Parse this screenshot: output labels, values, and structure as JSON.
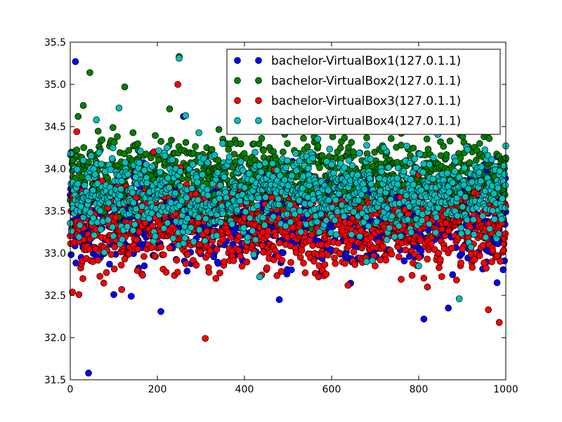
{
  "chart_data": {
    "type": "scatter",
    "title": "",
    "xlabel": "",
    "ylabel": "",
    "xlim": [
      0,
      1000
    ],
    "ylim": [
      31.5,
      35.5
    ],
    "x_ticks": [
      "0",
      "200",
      "400",
      "600",
      "800",
      "1000"
    ],
    "y_ticks": [
      "31.5",
      "32.0",
      "32.5",
      "33.0",
      "33.5",
      "34.0",
      "34.5",
      "35.0",
      "35.5"
    ],
    "grid": false,
    "legend_position": "top-right",
    "points_per_series": 1000,
    "series": [
      {
        "name": "bachelor-VirtualBox1(127.0.1.1)",
        "color": "#0000ff",
        "typical_range": [
          33.0,
          33.8
        ],
        "sample_points": [
          [
            12,
            35.27
          ],
          [
            42,
            31.58
          ],
          [
            100,
            32.51
          ],
          [
            140,
            32.49
          ],
          [
            170,
            32.85
          ],
          [
            208,
            32.31
          ],
          [
            260,
            34.62
          ],
          [
            480,
            32.45
          ],
          [
            812,
            32.22
          ],
          [
            868,
            32.35
          ],
          [
            25,
            32.95
          ],
          [
            330,
            33.45
          ],
          [
            690,
            33.62
          ],
          [
            950,
            34.05
          ],
          [
            980,
            32.65
          ]
        ]
      },
      {
        "name": "bachelor-VirtualBox2(127.0.1.1)",
        "color": "#008000",
        "typical_range": [
          33.5,
          34.3
        ],
        "sample_points": [
          [
            45,
            35.14
          ],
          [
            125,
            34.97
          ],
          [
            228,
            34.71
          ],
          [
            250,
            35.33
          ],
          [
            18,
            34.62
          ],
          [
            30,
            34.75
          ],
          [
            380,
            34.45
          ],
          [
            470,
            34.55
          ],
          [
            560,
            34.38
          ],
          [
            760,
            34.42
          ],
          [
            850,
            34.32
          ],
          [
            940,
            34.3
          ],
          [
            990,
            33.93
          ],
          [
            5,
            34.1
          ],
          [
            650,
            34.2
          ]
        ]
      },
      {
        "name": "bachelor-VirtualBox3(127.0.1.1)",
        "color": "#ff0000",
        "typical_range": [
          32.9,
          33.7
        ],
        "sample_points": [
          [
            5,
            32.54
          ],
          [
            20,
            32.51
          ],
          [
            118,
            32.57
          ],
          [
            247,
            35.0
          ],
          [
            310,
            31.99
          ],
          [
            192,
            34.2
          ],
          [
            15,
            34.44
          ],
          [
            570,
            32.72
          ],
          [
            700,
            32.85
          ],
          [
            820,
            32.6
          ],
          [
            960,
            32.33
          ],
          [
            985,
            32.18
          ],
          [
            88,
            33.35
          ],
          [
            410,
            33.65
          ],
          [
            900,
            33.05
          ]
        ]
      },
      {
        "name": "bachelor-VirtualBox4(127.0.1.1)",
        "color": "#00bfbf",
        "typical_range": [
          33.3,
          34.1
        ],
        "sample_points": [
          [
            250,
            35.31
          ],
          [
            265,
            34.63
          ],
          [
            112,
            34.72
          ],
          [
            60,
            34.58
          ],
          [
            893,
            32.46
          ],
          [
            435,
            32.72
          ],
          [
            800,
            32.85
          ],
          [
            150,
            33.9
          ],
          [
            350,
            34.3
          ],
          [
            600,
            34.05
          ],
          [
            720,
            34.25
          ],
          [
            990,
            33.4
          ],
          [
            30,
            34.1
          ],
          [
            500,
            33.8
          ],
          [
            680,
            32.9
          ]
        ]
      }
    ]
  }
}
